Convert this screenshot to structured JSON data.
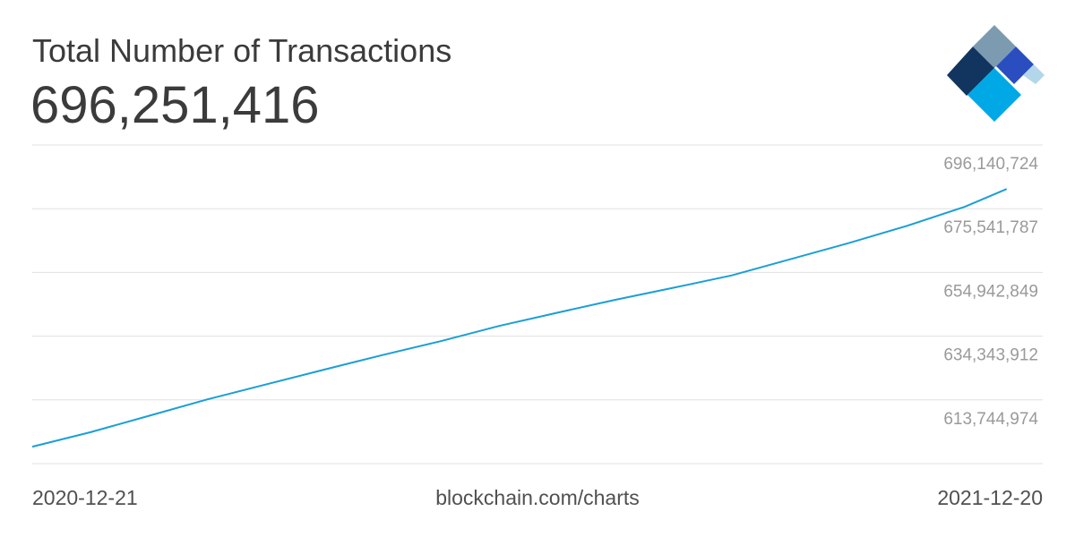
{
  "header": {
    "title": "Total Number of Transactions",
    "value": "696,251,416"
  },
  "footer": {
    "start_date": "2020-12-21",
    "source": "blockchain.com/charts",
    "end_date": "2021-12-20"
  },
  "logo": {
    "icon": "blockchain-logo-icon",
    "colors": [
      "#7c9bb0",
      "#12355f",
      "#2a4ec0",
      "#00a9e6",
      "#b3d6ea"
    ]
  },
  "colors": {
    "line": "#1a9fd6",
    "grid": "#e0e0e0",
    "tick_text": "#9a9a9a",
    "title_text": "#3b3b3b"
  },
  "chart_data": {
    "type": "line",
    "title": "Total Number of Transactions",
    "xlabel": "",
    "ylabel": "",
    "x_range": [
      "2020-12-21",
      "2021-12-20"
    ],
    "ylim": [
      593146037,
      696140724
    ],
    "y_ticks": [
      613744974,
      634343912,
      654942849,
      675541787,
      696140724
    ],
    "y_tick_labels": [
      "613,744,974",
      "634,343,912",
      "654,942,849",
      "675,541,787",
      "696,140,724"
    ],
    "grid": true,
    "series": [
      {
        "x": [
          "2020-12-21",
          "2021-01-11",
          "2021-02-01",
          "2021-02-22",
          "2021-03-15",
          "2021-04-05",
          "2021-04-26",
          "2021-05-17",
          "2021-06-07",
          "2021-06-28",
          "2021-07-19",
          "2021-08-09",
          "2021-08-30",
          "2021-09-20",
          "2021-10-11",
          "2021-11-01",
          "2021-11-22",
          "2021-12-07"
        ],
        "values": [
          598600000,
          603300000,
          608600000,
          613900000,
          618700000,
          623500000,
          628200000,
          632700000,
          637600000,
          641900000,
          646100000,
          650000000,
          654000000,
          659200000,
          664400000,
          670000000,
          676200000,
          681900000
        ]
      }
    ]
  }
}
